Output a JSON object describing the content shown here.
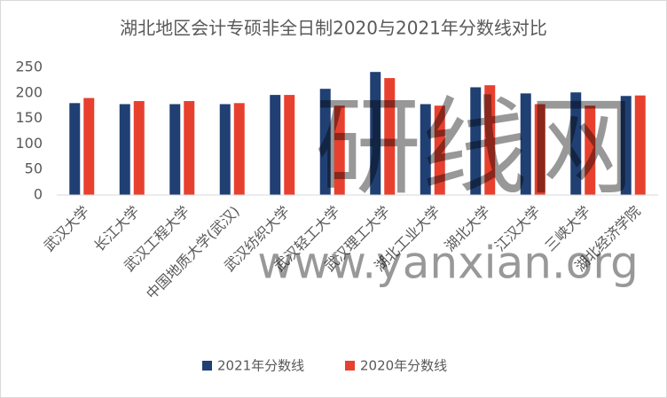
{
  "chart_data": {
    "type": "bar",
    "title": "湖北地区会计专硕非全日制2020与2021年分数线对比",
    "categories": [
      "武汉大学",
      "长江大学",
      "武汉工程大学",
      "中国地质大学(武汉)",
      "武汉纺织大学",
      "武汉轻工大学",
      "武汉理工大学",
      "湖北工业大学",
      "湖北大学",
      "江汉大学",
      "三峡大学",
      "湖北经济学院"
    ],
    "series": [
      {
        "name": "2021年分数线",
        "color": "#203f73",
        "values": [
          180,
          178,
          178,
          178,
          196,
          208,
          241,
          178,
          211,
          199,
          201,
          194
        ]
      },
      {
        "name": "2020年分数线",
        "color": "#e8402f",
        "values": [
          190,
          184,
          184,
          180,
          196,
          175,
          229,
          175,
          215,
          178,
          175,
          195
        ]
      }
    ],
    "ylim": [
      0,
      250
    ],
    "yticks": [
      0,
      50,
      100,
      150,
      200,
      250
    ],
    "grid": false,
    "legend": "bottom",
    "watermark": [
      "研线网",
      "www.yanxian.org"
    ]
  }
}
